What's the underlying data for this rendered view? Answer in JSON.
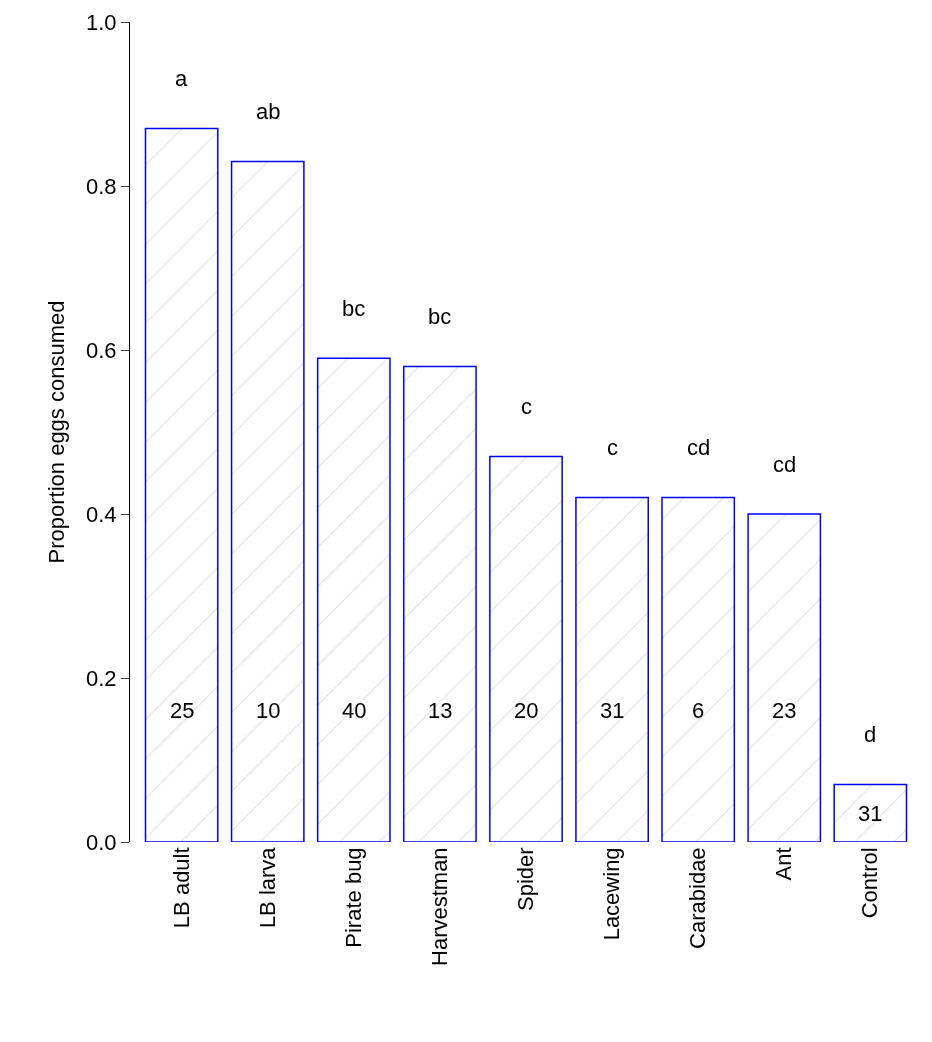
{
  "chart_data": {
    "type": "bar",
    "ylabel": "Proportion eggs consumed",
    "categories": [
      "LB adult",
      "LB larva",
      "Pirate bug",
      "Harvestman",
      "Spider",
      "Lacewing",
      "Carabidae",
      "Ant",
      "Control"
    ],
    "values": [
      0.87,
      0.83,
      0.59,
      0.58,
      0.47,
      0.42,
      0.42,
      0.4,
      0.07
    ],
    "color": "#0000ff",
    "ylim": [
      0,
      1.0
    ],
    "yticks": [
      {
        "value": 0,
        "label": "0.0"
      },
      0.2,
      0.4,
      0.6,
      0.8,
      {
        "value": 1,
        "label": "1.0"
      }
    ],
    "annotations": [
      "a",
      "ab",
      "bc",
      "bc",
      "c",
      "c",
      "cd",
      "cd",
      "d",
      "25",
      "10",
      "40",
      "13",
      "20",
      "31",
      "6",
      "23",
      "31"
    ]
  }
}
